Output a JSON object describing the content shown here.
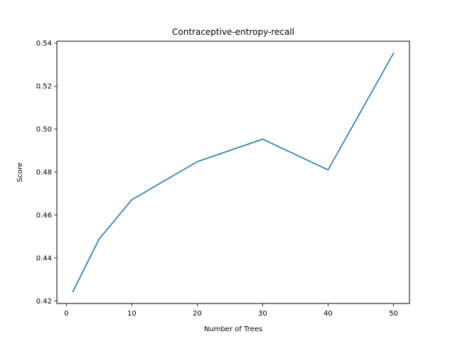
{
  "chart_data": {
    "type": "line",
    "title": "Contraceptive-entropy-recall",
    "xlabel": "Number of Trees",
    "ylabel": "Score",
    "x": [
      1,
      5,
      10,
      20,
      30,
      40,
      50
    ],
    "series": [
      {
        "values": [
          0.4243,
          0.4488,
          0.4671,
          0.4848,
          0.4953,
          0.481,
          0.5353
        ],
        "color": "#1f77b4"
      }
    ],
    "xlim": [
      -1.45,
      52.45
    ],
    "ylim": [
      0.4188,
      0.5409
    ],
    "xticks": [
      0,
      10,
      20,
      30,
      40,
      50
    ],
    "xtick_labels": [
      "0",
      "10",
      "20",
      "30",
      "40",
      "50"
    ],
    "yticks": [
      0.42,
      0.44,
      0.46,
      0.48,
      0.5,
      0.52,
      0.54
    ],
    "ytick_labels": [
      "0.42",
      "0.44",
      "0.46",
      "0.48",
      "0.50",
      "0.52",
      "0.54"
    ],
    "grid": false,
    "legend": "none"
  }
}
